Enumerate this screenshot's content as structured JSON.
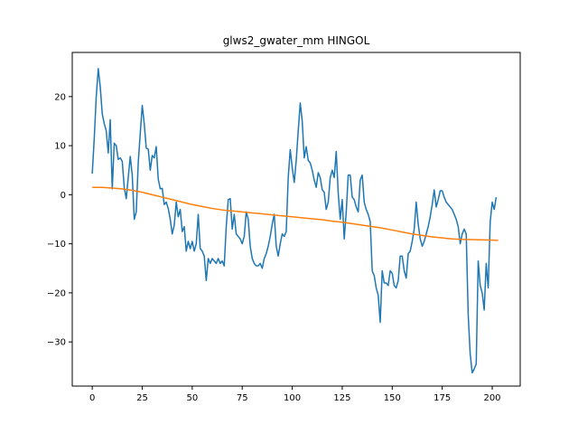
{
  "chart_data": {
    "type": "line",
    "title": "glws2_gwater_mm HINGOL",
    "xlabel": "",
    "ylabel": "",
    "xlim": [
      -10,
      214
    ],
    "ylim": [
      -39,
      29
    ],
    "xticks": [
      0,
      25,
      50,
      75,
      100,
      125,
      150,
      175,
      200
    ],
    "yticks": [
      -30,
      -20,
      -10,
      0,
      10,
      20
    ],
    "grid": false,
    "legend": "none",
    "series": [
      {
        "color": "#1f77b4",
        "points": [
          [
            0,
            4.3
          ],
          [
            1,
            11.5
          ],
          [
            2,
            20.0
          ],
          [
            3,
            25.7
          ],
          [
            4,
            22.0
          ],
          [
            5,
            16.5
          ],
          [
            6,
            14.5
          ],
          [
            7,
            13.0
          ],
          [
            8,
            8.5
          ],
          [
            9,
            15.3
          ],
          [
            10,
            1.2
          ],
          [
            11,
            10.5
          ],
          [
            12,
            10.0
          ],
          [
            13,
            7.2
          ],
          [
            14,
            7.5
          ],
          [
            15,
            6.8
          ],
          [
            16,
            1.5
          ],
          [
            17,
            -0.8
          ],
          [
            18,
            3.5
          ],
          [
            19,
            7.8
          ],
          [
            20,
            4.0
          ],
          [
            21,
            -5.0
          ],
          [
            22,
            -3.5
          ],
          [
            23,
            6.5
          ],
          [
            24,
            12.5
          ],
          [
            25,
            18.2
          ],
          [
            26,
            14.5
          ],
          [
            27,
            9.5
          ],
          [
            28,
            9.3
          ],
          [
            29,
            5.0
          ],
          [
            30,
            8.0
          ],
          [
            31,
            7.5
          ],
          [
            32,
            9.8
          ],
          [
            33,
            3.2
          ],
          [
            34,
            1.2
          ],
          [
            35,
            1.3
          ],
          [
            36,
            -2.0
          ],
          [
            37,
            -1.5
          ],
          [
            38,
            -2.8
          ],
          [
            39,
            -5.0
          ],
          [
            40,
            -8.0
          ],
          [
            41,
            -6.2
          ],
          [
            42,
            -1.5
          ],
          [
            43,
            -4.5
          ],
          [
            44,
            -3.0
          ],
          [
            45,
            -7.5
          ],
          [
            46,
            -6.5
          ],
          [
            47,
            -11.5
          ],
          [
            48,
            -9.5
          ],
          [
            49,
            -11.0
          ],
          [
            50,
            -9.5
          ],
          [
            51,
            -11.5
          ],
          [
            52,
            -10.0
          ],
          [
            53,
            -4.0
          ],
          [
            54,
            -11.0
          ],
          [
            55,
            -11.5
          ],
          [
            56,
            -12.5
          ],
          [
            57,
            -17.5
          ],
          [
            58,
            -13.0
          ],
          [
            59,
            -14.0
          ],
          [
            60,
            -13.0
          ],
          [
            61,
            -13.5
          ],
          [
            62,
            -14.0
          ],
          [
            63,
            -13.0
          ],
          [
            64,
            -14.0
          ],
          [
            65,
            -13.5
          ],
          [
            66,
            -14.5
          ],
          [
            67,
            -6.5
          ],
          [
            68,
            -1.0
          ],
          [
            69,
            -0.8
          ],
          [
            70,
            -7.0
          ],
          [
            71,
            -4.0
          ],
          [
            72,
            -8.0
          ],
          [
            73,
            -8.5
          ],
          [
            74,
            -9.0
          ],
          [
            75,
            -10.0
          ],
          [
            76,
            -8.5
          ],
          [
            77,
            -3.5
          ],
          [
            78,
            -5.0
          ],
          [
            79,
            -10.5
          ],
          [
            80,
            -13.0
          ],
          [
            81,
            -14.0
          ],
          [
            82,
            -14.5
          ],
          [
            83,
            -14.5
          ],
          [
            84,
            -14.0
          ],
          [
            85,
            -15.0
          ],
          [
            86,
            -13.0
          ],
          [
            87,
            -12.0
          ],
          [
            88,
            -10.5
          ],
          [
            89,
            -8.5
          ],
          [
            90,
            -6.0
          ],
          [
            91,
            -4.0
          ],
          [
            92,
            -10.5
          ],
          [
            93,
            -12.5
          ],
          [
            94,
            -10.0
          ],
          [
            95,
            -8.0
          ],
          [
            96,
            -8.5
          ],
          [
            97,
            -7.5
          ],
          [
            98,
            3.5
          ],
          [
            99,
            9.2
          ],
          [
            100,
            5.5
          ],
          [
            101,
            2.5
          ],
          [
            102,
            7.0
          ],
          [
            103,
            13.0
          ],
          [
            104,
            18.7
          ],
          [
            105,
            15.0
          ],
          [
            106,
            7.5
          ],
          [
            107,
            9.8
          ],
          [
            108,
            7.0
          ],
          [
            109,
            6.5
          ],
          [
            110,
            5.0
          ],
          [
            111,
            3.0
          ],
          [
            112,
            1.5
          ],
          [
            113,
            4.5
          ],
          [
            114,
            3.5
          ],
          [
            115,
            1.0
          ],
          [
            116,
            0.5
          ],
          [
            117,
            -3.0
          ],
          [
            118,
            -1.5
          ],
          [
            119,
            3.5
          ],
          [
            120,
            5.0
          ],
          [
            121,
            3.5
          ],
          [
            122,
            8.8
          ],
          [
            123,
            0.3
          ],
          [
            124,
            -5.0
          ],
          [
            125,
            -1.0
          ],
          [
            126,
            -9.0
          ],
          [
            127,
            -3.5
          ],
          [
            128,
            4.0
          ],
          [
            129,
            4.0
          ],
          [
            130,
            -0.5
          ],
          [
            131,
            -1.0
          ],
          [
            132,
            -2.5
          ],
          [
            133,
            -3.5
          ],
          [
            134,
            3.0
          ],
          [
            135,
            4.0
          ],
          [
            136,
            -1.5
          ],
          [
            137,
            -3.0
          ],
          [
            138,
            -4.0
          ],
          [
            139,
            -5.5
          ],
          [
            140,
            -15.5
          ],
          [
            141,
            -16.5
          ],
          [
            142,
            -19.0
          ],
          [
            143,
            -20.5
          ],
          [
            144,
            -26.0
          ],
          [
            145,
            -15.5
          ],
          [
            146,
            -18.0
          ],
          [
            147,
            -18.0
          ],
          [
            148,
            -18.5
          ],
          [
            149,
            -15.5
          ],
          [
            150,
            -16.0
          ],
          [
            151,
            -18.5
          ],
          [
            152,
            -19.0
          ],
          [
            153,
            -17.5
          ],
          [
            154,
            -12.5
          ],
          [
            155,
            -12.5
          ],
          [
            156,
            -15.5
          ],
          [
            157,
            -17.0
          ],
          [
            158,
            -12.0
          ],
          [
            159,
            -11.5
          ],
          [
            160,
            -9.5
          ],
          [
            161,
            -7.0
          ],
          [
            162,
            -1.5
          ],
          [
            163,
            -6.0
          ],
          [
            164,
            -9.0
          ],
          [
            165,
            -10.5
          ],
          [
            166,
            -9.5
          ],
          [
            167,
            -8.0
          ],
          [
            168,
            -6.5
          ],
          [
            169,
            -4.5
          ],
          [
            170,
            -2.0
          ],
          [
            171,
            1.0
          ],
          [
            172,
            -2.5
          ],
          [
            173,
            -1.0
          ],
          [
            174,
            0.8
          ],
          [
            175,
            0.8
          ],
          [
            176,
            -0.5
          ],
          [
            177,
            -1.5
          ],
          [
            178,
            -2.0
          ],
          [
            179,
            -2.5
          ],
          [
            180,
            -3.0
          ],
          [
            181,
            -4.0
          ],
          [
            182,
            -5.0
          ],
          [
            183,
            -6.5
          ],
          [
            184,
            -10.0
          ],
          [
            185,
            -8.0
          ],
          [
            186,
            -7.0
          ],
          [
            187,
            -8.0
          ],
          [
            188,
            -24.5
          ],
          [
            189,
            -32.5
          ],
          [
            190,
            -36.3
          ],
          [
            191,
            -35.5
          ],
          [
            192,
            -34.5
          ],
          [
            193,
            -13.5
          ],
          [
            194,
            -18.5
          ],
          [
            195,
            -20.0
          ],
          [
            196,
            -23.5
          ],
          [
            197,
            -14.0
          ],
          [
            198,
            -19.0
          ],
          [
            199,
            -5.5
          ],
          [
            200,
            -1.5
          ],
          [
            201,
            -3.0
          ],
          [
            202,
            -0.5
          ]
        ]
      },
      {
        "color": "#ff7f0e",
        "points": [
          [
            0,
            1.5
          ],
          [
            5,
            1.5
          ],
          [
            10,
            1.35
          ],
          [
            15,
            1.2
          ],
          [
            20,
            0.9
          ],
          [
            25,
            0.5
          ],
          [
            30,
            0.0
          ],
          [
            35,
            -0.5
          ],
          [
            40,
            -1.0
          ],
          [
            45,
            -1.5
          ],
          [
            50,
            -2.0
          ],
          [
            55,
            -2.4
          ],
          [
            60,
            -2.8
          ],
          [
            65,
            -3.1
          ],
          [
            70,
            -3.3
          ],
          [
            75,
            -3.5
          ],
          [
            80,
            -3.7
          ],
          [
            85,
            -3.9
          ],
          [
            90,
            -4.1
          ],
          [
            95,
            -4.3
          ],
          [
            100,
            -4.5
          ],
          [
            105,
            -4.7
          ],
          [
            110,
            -4.9
          ],
          [
            115,
            -5.1
          ],
          [
            120,
            -5.4
          ],
          [
            125,
            -5.6
          ],
          [
            130,
            -5.9
          ],
          [
            135,
            -6.2
          ],
          [
            140,
            -6.5
          ],
          [
            145,
            -6.8
          ],
          [
            150,
            -7.2
          ],
          [
            155,
            -7.6
          ],
          [
            160,
            -8.0
          ],
          [
            165,
            -8.3
          ],
          [
            170,
            -8.6
          ],
          [
            175,
            -8.8
          ],
          [
            180,
            -9.0
          ],
          [
            185,
            -9.1
          ],
          [
            190,
            -9.15
          ],
          [
            195,
            -9.2
          ],
          [
            200,
            -9.25
          ],
          [
            203,
            -9.3
          ]
        ]
      }
    ]
  }
}
